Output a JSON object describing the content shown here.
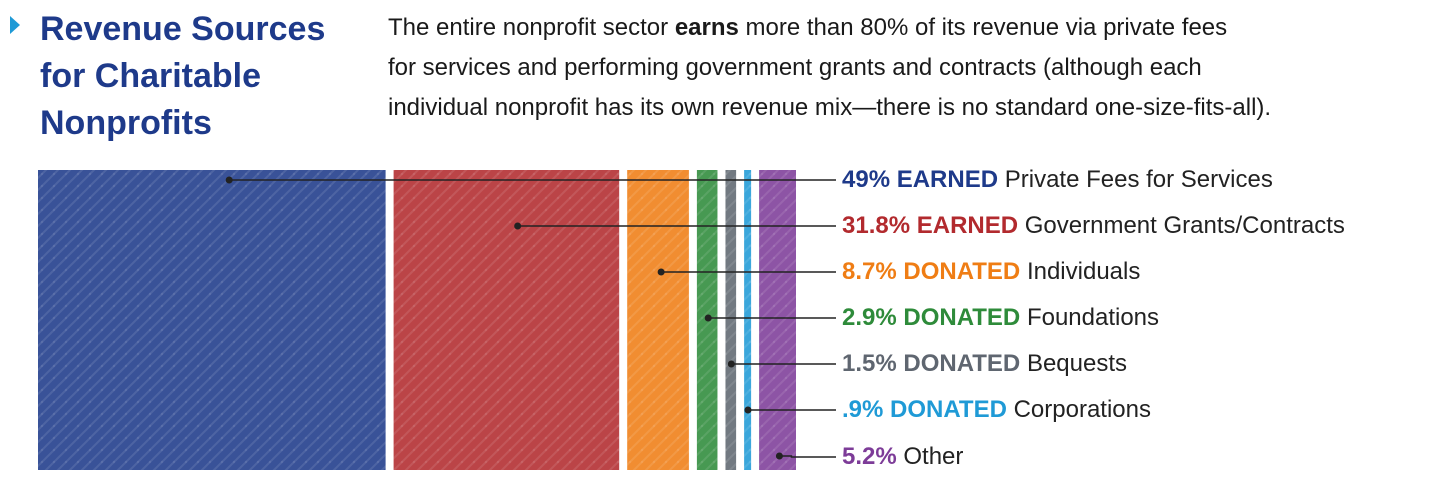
{
  "header": {
    "title_lines": [
      "Revenue Sources",
      "for Charitable",
      "Nonprofits"
    ],
    "intro_lines": [
      {
        "pre": "The entire nonprofit sector ",
        "bold": "earns",
        "post": " more than 80% of its revenue via private fees"
      },
      {
        "pre": "for services and performing government grants and contracts (although each",
        "bold": "",
        "post": ""
      },
      {
        "pre": "individual nonprofit has its own revenue mix—there is no standard one-size-fits-all).",
        "bold": "",
        "post": ""
      }
    ]
  },
  "colors": {
    "title": "#1e3a8a",
    "arrow": "#1f9ad6",
    "text": "#222222"
  },
  "chart_data": {
    "type": "bar",
    "orientation": "stacked-horizontal",
    "series": [
      {
        "pct": "49%",
        "kind": "EARNED",
        "label": "Private Fees for Services",
        "value": 49,
        "color": "#1e3a8a"
      },
      {
        "pct": "31.8%",
        "kind": "EARNED",
        "label": "Government Grants/Contracts",
        "value": 31.8,
        "color": "#b22a2e"
      },
      {
        "pct": "8.7%",
        "kind": "DONATED",
        "label": "Individuals",
        "value": 8.7,
        "color": "#ef7d14"
      },
      {
        "pct": "2.9%",
        "kind": "DONATED",
        "label": "Foundations",
        "value": 2.9,
        "color": "#2e8b3a"
      },
      {
        "pct": "1.5%",
        "kind": "DONATED",
        "label": "Bequests",
        "value": 1.5,
        "color": "#5f6670"
      },
      {
        "pct": ".9%",
        "kind": "DONATED",
        "label": "Corporations",
        "value": 0.9,
        "color": "#1f9ad6"
      },
      {
        "pct": "5.2%",
        "kind": "",
        "label": "Other",
        "value": 5.2,
        "color": "#7d3c98"
      }
    ]
  }
}
